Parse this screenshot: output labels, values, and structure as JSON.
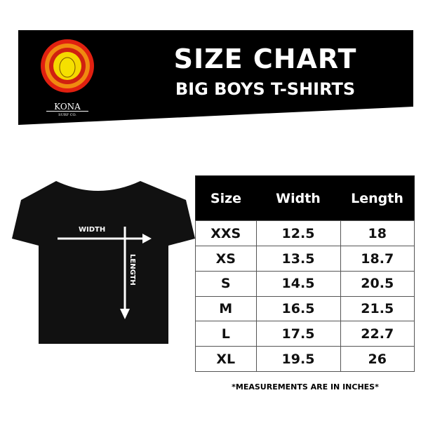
{
  "header": {
    "title": "SIZE CHART",
    "subtitle": "BIG BOYS T-SHIRTS",
    "logo_text": "KONA",
    "logo_subtext": "SURF CO."
  },
  "diagram": {
    "width_label": "WIDTH",
    "length_label": "LENGTH"
  },
  "table": {
    "headers": [
      "Size",
      "Width",
      "Length"
    ],
    "rows": [
      [
        "XXS",
        "12.5",
        "18"
      ],
      [
        "XS",
        "13.5",
        "18.7"
      ],
      [
        "S",
        "14.5",
        "20.5"
      ],
      [
        "M",
        "16.5",
        "21.5"
      ],
      [
        "L",
        "17.5",
        "22.7"
      ],
      [
        "XL",
        "19.5",
        "26"
      ]
    ]
  },
  "footnote": "*MEASUREMENTS ARE IN INCHES*"
}
